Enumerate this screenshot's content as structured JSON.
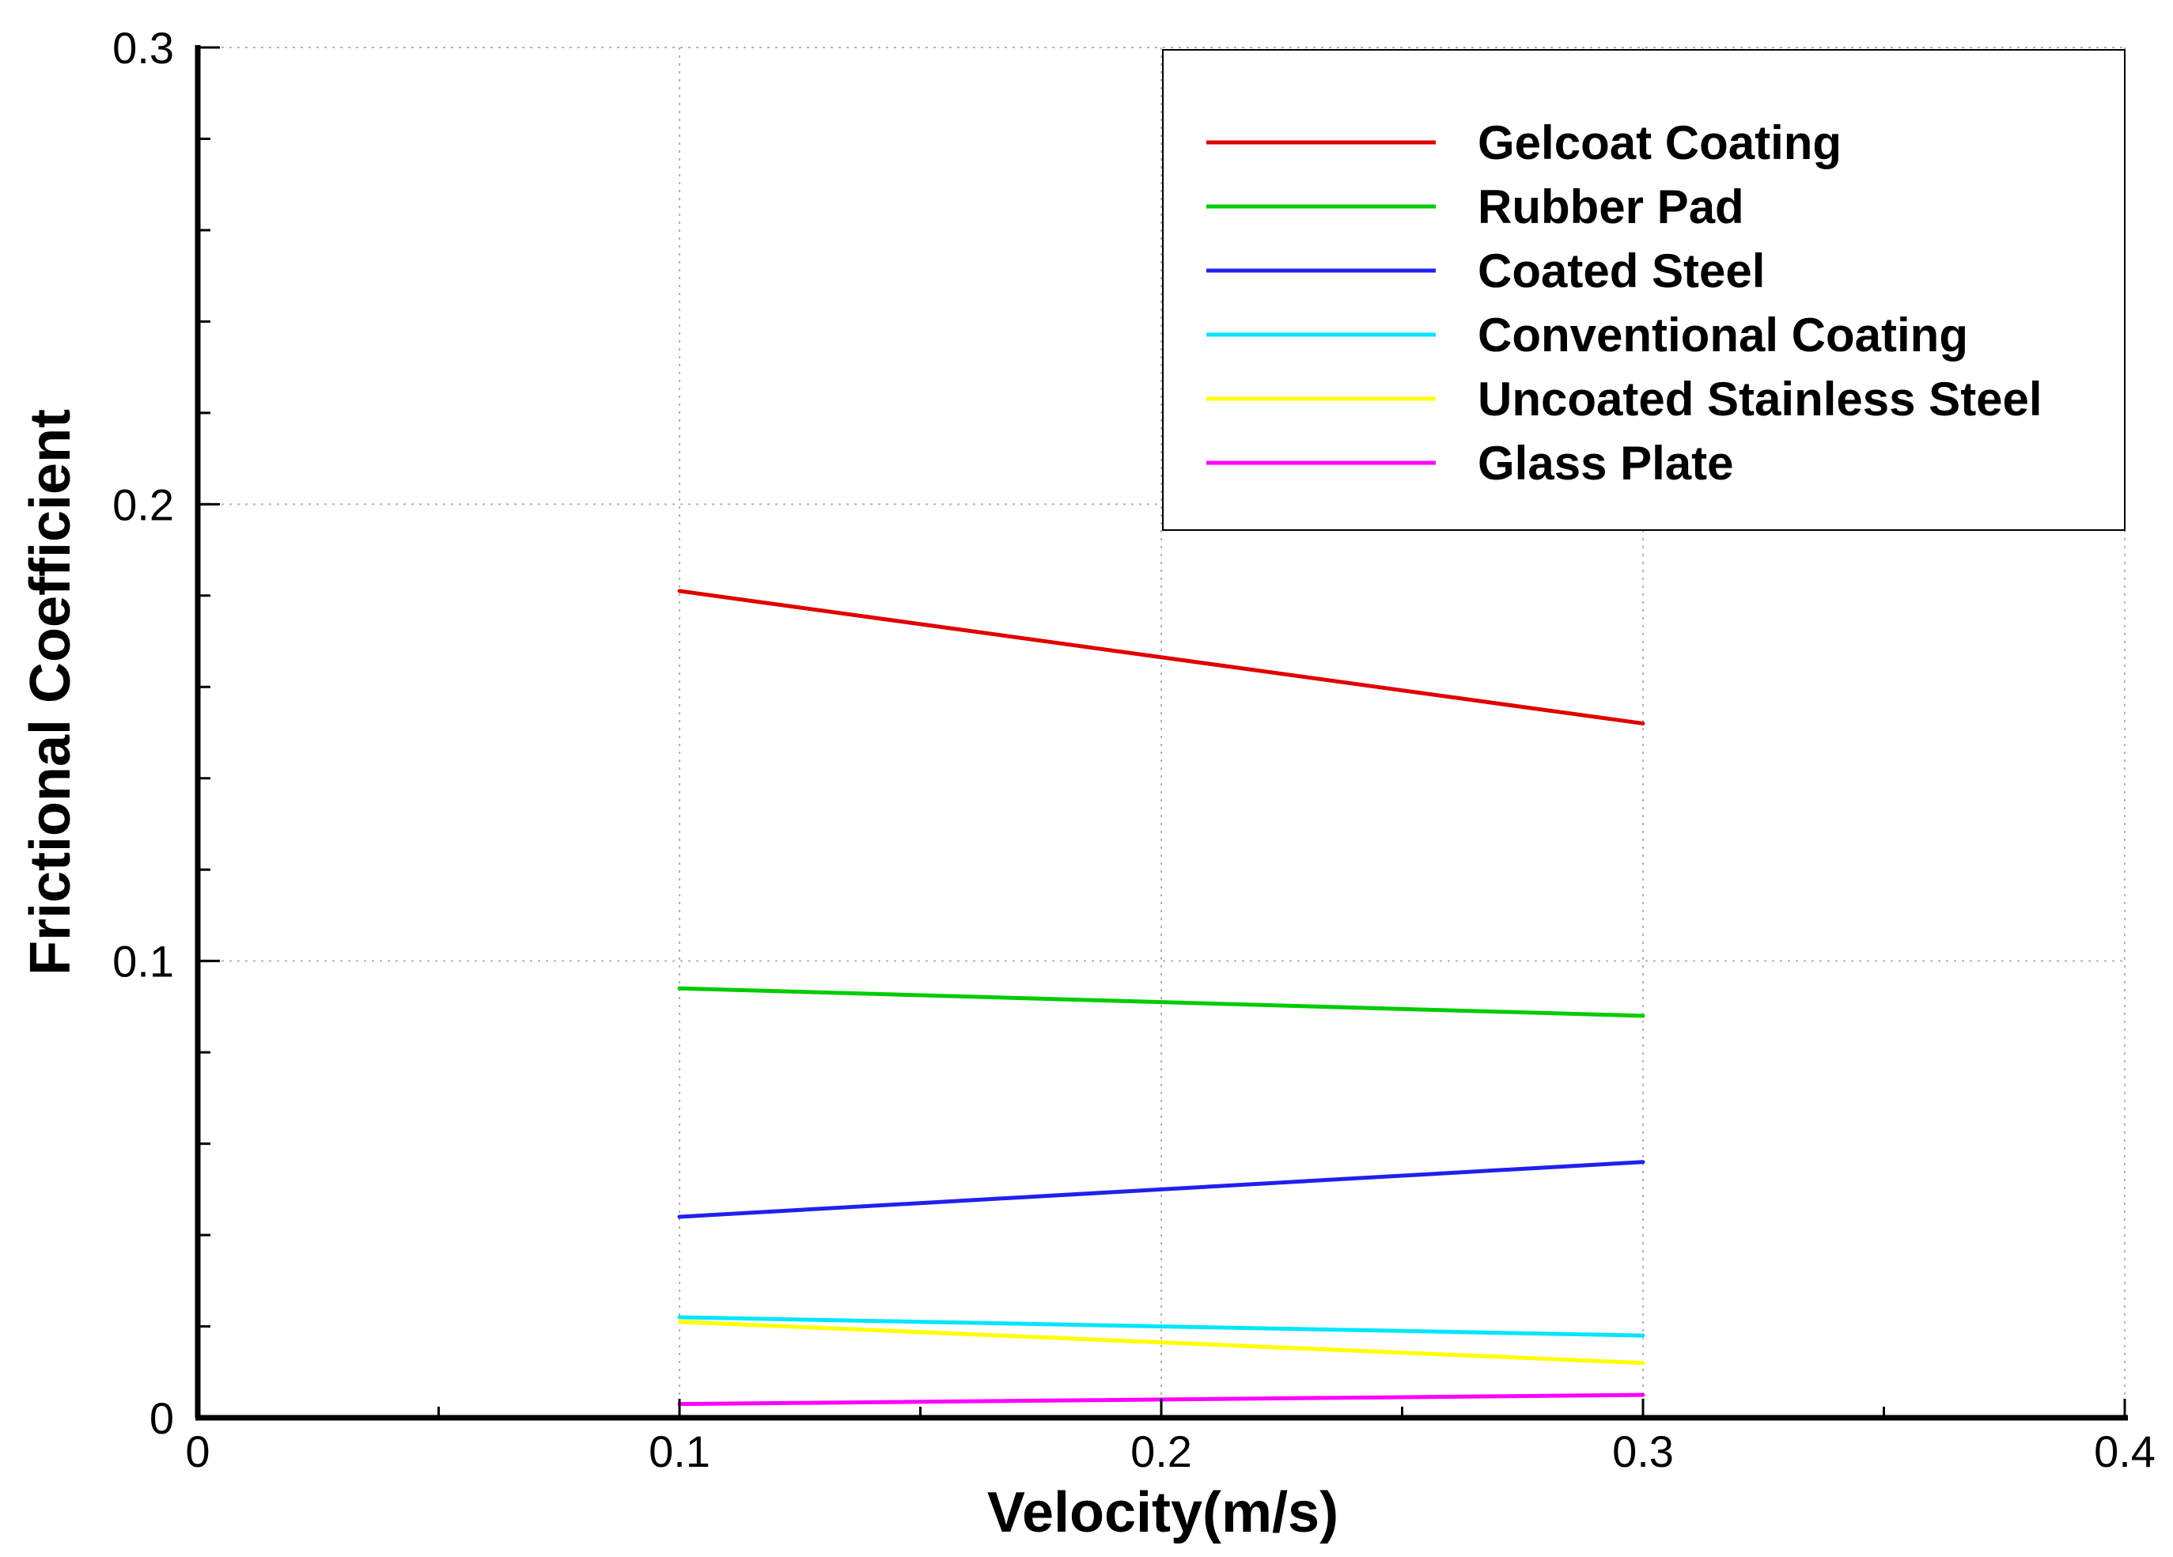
{
  "chart_data": {
    "type": "line",
    "title": "",
    "xlabel": "Velocity(m/s)",
    "ylabel": "Frictional Coefficient",
    "xlim": [
      0,
      0.4
    ],
    "ylim": [
      0,
      0.3
    ],
    "x_ticks": [
      "0",
      "0.1",
      "0.2",
      "0.3",
      "0.4"
    ],
    "y_ticks": [
      "0",
      "0.1",
      "0.2",
      "0.3"
    ],
    "grid": true,
    "legend_position": "top-right",
    "x": [
      0.1,
      0.3
    ],
    "series": [
      {
        "name": "Gelcoat Coating",
        "color": "#e00000",
        "values": [
          0.181,
          0.152
        ]
      },
      {
        "name": "Rubber Pad",
        "color": "#00cc00",
        "values": [
          0.094,
          0.088
        ]
      },
      {
        "name": "Coated Steel",
        "color": "#2020ee",
        "values": [
          0.044,
          0.056
        ]
      },
      {
        "name": "Conventional Coating",
        "color": "#00e6ff",
        "values": [
          0.022,
          0.018
        ]
      },
      {
        "name": "Uncoated Stainless Steel",
        "color": "#ffff00",
        "values": [
          0.021,
          0.012
        ]
      },
      {
        "name": "Glass Plate",
        "color": "#ff00ff",
        "values": [
          0.003,
          0.005
        ]
      }
    ]
  }
}
